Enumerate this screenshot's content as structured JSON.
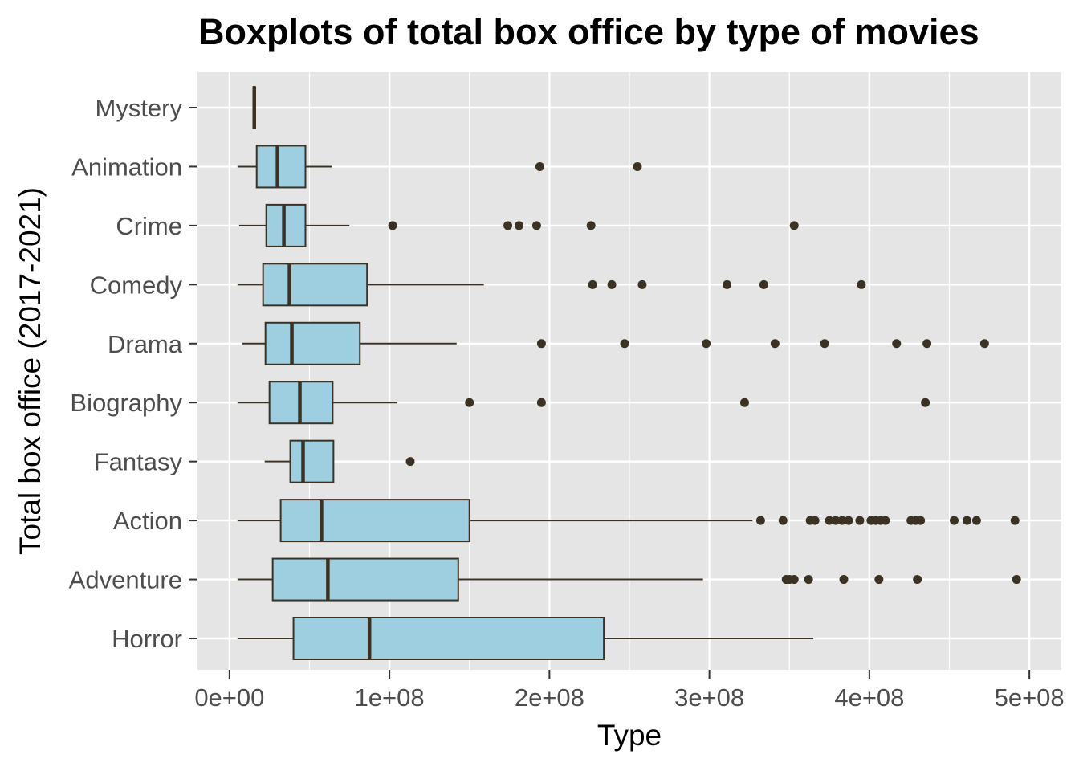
{
  "chart_data": {
    "type": "boxplot",
    "orientation": "horizontal",
    "title": "Boxplots of total box office by type of movies",
    "xlabel": "Type",
    "ylabel": "Total box office (2017-2021)",
    "xlim": [
      -20000000,
      520000000
    ],
    "x_ticks": [
      0,
      100000000,
      200000000,
      300000000,
      400000000,
      500000000
    ],
    "x_tick_labels": [
      "0e+00",
      "1e+08",
      "2e+08",
      "3e+08",
      "4e+08",
      "5e+08"
    ],
    "grid": true,
    "legend": "none",
    "colors": {
      "panel": "#e5e5e5",
      "grid": "#ffffff",
      "box_fill": "#9ecfe1",
      "box_line": "#3b3224",
      "outlier": "#3b3224"
    },
    "categories": [
      "Mystery",
      "Animation",
      "Crime",
      "Comedy",
      "Drama",
      "Biography",
      "Fantasy",
      "Action",
      "Adventure",
      "Horror"
    ],
    "boxes": [
      {
        "category": "Mystery",
        "whisker_low": 15000000,
        "q1": 15000000,
        "median": 15500000,
        "q3": 16000000,
        "whisker_high": 16000000,
        "outliers": []
      },
      {
        "category": "Animation",
        "whisker_low": 5000000,
        "q1": 17000000,
        "median": 30000000,
        "q3": 47500000,
        "whisker_high": 64000000,
        "outliers": [
          194000000,
          255000000
        ]
      },
      {
        "category": "Crime",
        "whisker_low": 6000000,
        "q1": 23000000,
        "median": 34000000,
        "q3": 47500000,
        "whisker_high": 75000000,
        "outliers": [
          102000000,
          174000000,
          181000000,
          192000000,
          226000000,
          353000000
        ]
      },
      {
        "category": "Comedy",
        "whisker_low": 5000000,
        "q1": 21000000,
        "median": 37500000,
        "q3": 86000000,
        "whisker_high": 159000000,
        "outliers": [
          227000000,
          239000000,
          258000000,
          311000000,
          334000000,
          395000000
        ]
      },
      {
        "category": "Drama",
        "whisker_low": 8000000,
        "q1": 22500000,
        "median": 39000000,
        "q3": 81500000,
        "whisker_high": 142000000,
        "outliers": [
          195000000,
          247000000,
          298000000,
          341000000,
          372000000,
          417000000,
          436000000,
          472000000
        ]
      },
      {
        "category": "Biography",
        "whisker_low": 5000000,
        "q1": 25000000,
        "median": 44000000,
        "q3": 64500000,
        "whisker_high": 105000000,
        "outliers": [
          150000000,
          195000000,
          322000000,
          435000000
        ]
      },
      {
        "category": "Fantasy",
        "whisker_low": 22000000,
        "q1": 38000000,
        "median": 46000000,
        "q3": 65000000,
        "whisker_high": 65000000,
        "outliers": [
          113000000
        ]
      },
      {
        "category": "Action",
        "whisker_low": 5000000,
        "q1": 32000000,
        "median": 57500000,
        "q3": 150000000,
        "whisker_high": 327000000,
        "outliers": [
          332000000,
          346000000,
          363000000,
          366000000,
          375000000,
          379000000,
          383000000,
          387000000,
          394000000,
          401000000,
          404000000,
          407000000,
          410000000,
          426000000,
          429000000,
          432000000,
          453000000,
          461000000,
          467000000,
          491000000
        ]
      },
      {
        "category": "Adventure",
        "whisker_low": 5000000,
        "q1": 27000000,
        "median": 61500000,
        "q3": 143000000,
        "whisker_high": 296000000,
        "outliers": [
          348000000,
          350000000,
          353000000,
          362000000,
          384000000,
          406000000,
          430000000,
          492000000
        ]
      },
      {
        "category": "Horror",
        "whisker_low": 5000000,
        "q1": 40000000,
        "median": 87500000,
        "q3": 234000000,
        "whisker_high": 365000000,
        "outliers": []
      }
    ]
  }
}
